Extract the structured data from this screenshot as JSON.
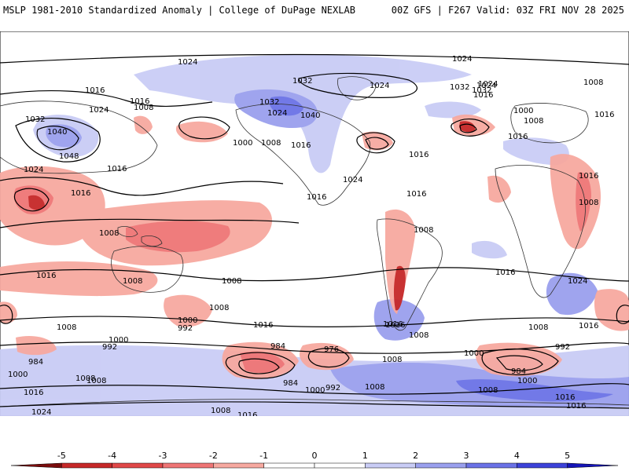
{
  "header": {
    "title_left": "MSLP 1981-2010 Standardized Anomaly | College of DuPage NEXLAB",
    "title_right": "00Z GFS | F267 Valid: 03Z FRI NOV 28 2025"
  },
  "legend": {
    "ticks": [
      "-5",
      "-4",
      "-3",
      "-2",
      "-1",
      "0",
      "1",
      "2",
      "3",
      "4",
      "5"
    ],
    "colors": [
      "#7a0c0c",
      "#c62828",
      "#e04848",
      "#ef7575",
      "#f7a9a0",
      "#ffffff",
      "#ffffff",
      "#c9ccf5",
      "#9aa0ee",
      "#6b72e6",
      "#3d42d9",
      "#1515b8"
    ]
  },
  "isobar_labels": [
    {
      "text": "1024"
    },
    {
      "text": "1016"
    },
    {
      "text": "1032"
    },
    {
      "text": "1024"
    },
    {
      "text": "1040"
    },
    {
      "text": "1048"
    },
    {
      "text": "1016"
    },
    {
      "text": "1008"
    },
    {
      "text": "1016"
    },
    {
      "text": "1024"
    },
    {
      "text": "1016"
    },
    {
      "text": "1008"
    },
    {
      "text": "1032"
    },
    {
      "text": "1024"
    },
    {
      "text": "1040"
    },
    {
      "text": "1024"
    },
    {
      "text": "1032"
    },
    {
      "text": "1024"
    },
    {
      "text": "1024"
    },
    {
      "text": "1032"
    },
    {
      "text": "1008"
    },
    {
      "text": "1000"
    },
    {
      "text": "1008"
    },
    {
      "text": "1016"
    },
    {
      "text": "1016"
    },
    {
      "text": "1024"
    },
    {
      "text": "1016"
    },
    {
      "text": "1016"
    },
    {
      "text": "1016"
    },
    {
      "text": "1032"
    },
    {
      "text": "1024"
    },
    {
      "text": "1016"
    },
    {
      "text": "1000"
    },
    {
      "text": "1008"
    },
    {
      "text": "1016"
    },
    {
      "text": "1016"
    },
    {
      "text": "1008"
    },
    {
      "text": "1016"
    },
    {
      "text": "1008"
    },
    {
      "text": "1008"
    },
    {
      "text": "1008"
    },
    {
      "text": "1016"
    },
    {
      "text": "1008"
    },
    {
      "text": "1008"
    },
    {
      "text": "1024"
    },
    {
      "text": "1016"
    },
    {
      "text": "1008"
    },
    {
      "text": "1016"
    },
    {
      "text": "1016"
    },
    {
      "text": "1000"
    },
    {
      "text": "992"
    },
    {
      "text": "1008"
    },
    {
      "text": "1000"
    },
    {
      "text": "992"
    },
    {
      "text": "984"
    },
    {
      "text": "984"
    },
    {
      "text": "976"
    },
    {
      "text": "1016"
    },
    {
      "text": "1008"
    },
    {
      "text": "1000"
    },
    {
      "text": "984"
    },
    {
      "text": "1000"
    },
    {
      "text": "992"
    },
    {
      "text": "1008"
    },
    {
      "text": "1008"
    },
    {
      "text": "1000"
    },
    {
      "text": "984"
    },
    {
      "text": "992"
    },
    {
      "text": "1008"
    },
    {
      "text": "1016"
    },
    {
      "text": "1016"
    },
    {
      "text": "1000"
    },
    {
      "text": "1016"
    },
    {
      "text": "1024"
    },
    {
      "text": "1008"
    },
    {
      "text": "1016"
    },
    {
      "text": "1008"
    }
  ]
}
